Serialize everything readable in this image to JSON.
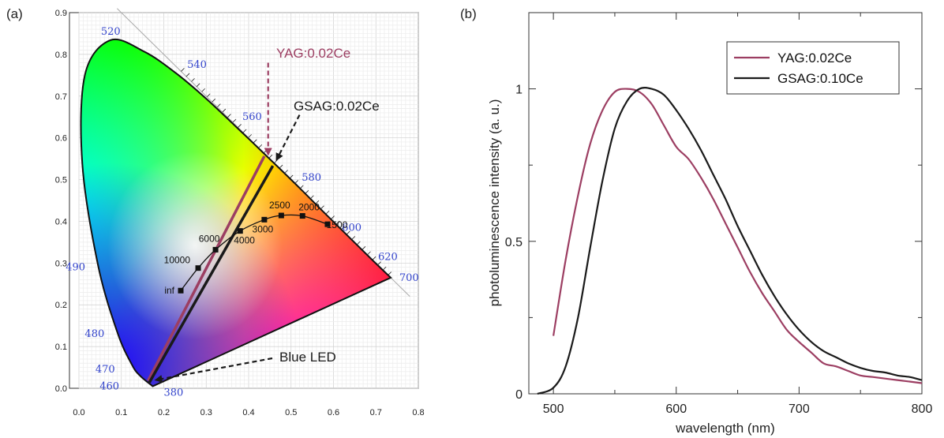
{
  "panels": {
    "a_label": "(a)",
    "b_label": "(b)"
  },
  "chart_data": [
    {
      "type": "scatter",
      "xlim": [
        0.0,
        0.8
      ],
      "ylim": [
        0.0,
        0.9
      ],
      "x_ticks": [
        "0.0",
        "0.1",
        "0.2",
        "0.3",
        "0.4",
        "0.5",
        "0.6",
        "0.7",
        "0.8"
      ],
      "y_ticks": [
        "0.0",
        "0.1",
        "0.2",
        "0.3",
        "0.4",
        "0.5",
        "0.6",
        "0.7",
        "0.8",
        "0.9"
      ],
      "grid": true,
      "spectral_locus": [
        {
          "wl": "380",
          "x": 0.174,
          "y": 0.005
        },
        {
          "wl": "460",
          "x": 0.144,
          "y": 0.03
        },
        {
          "wl": "470",
          "x": 0.124,
          "y": 0.058
        },
        {
          "wl": "480",
          "x": 0.091,
          "y": 0.133
        },
        {
          "wl": "490",
          "x": 0.045,
          "y": 0.295
        },
        {
          "wl": "",
          "x": 0.008,
          "y": 0.538
        },
        {
          "wl": "",
          "x": 0.014,
          "y": 0.75
        },
        {
          "wl": "520",
          "x": 0.074,
          "y": 0.834
        },
        {
          "wl": "",
          "x": 0.155,
          "y": 0.806
        },
        {
          "wl": "540",
          "x": 0.23,
          "y": 0.754
        },
        {
          "wl": "",
          "x": 0.302,
          "y": 0.692
        },
        {
          "wl": "560",
          "x": 0.373,
          "y": 0.624
        },
        {
          "wl": "",
          "x": 0.444,
          "y": 0.555
        },
        {
          "wl": "580",
          "x": 0.513,
          "y": 0.487
        },
        {
          "wl": "",
          "x": 0.575,
          "y": 0.424
        },
        {
          "wl": "600",
          "x": 0.627,
          "y": 0.372
        },
        {
          "wl": "620",
          "x": 0.691,
          "y": 0.308
        },
        {
          "wl": "700",
          "x": 0.735,
          "y": 0.265
        }
      ],
      "planckian_locus": [
        {
          "label": "inf",
          "x": 0.24,
          "y": 0.234
        },
        {
          "label": "10000",
          "x": 0.281,
          "y": 0.288
        },
        {
          "label": "6000",
          "x": 0.322,
          "y": 0.332
        },
        {
          "label": "4000",
          "x": 0.38,
          "y": 0.377
        },
        {
          "label": "3000",
          "x": 0.437,
          "y": 0.404
        },
        {
          "label": "2500",
          "x": 0.477,
          "y": 0.414
        },
        {
          "label": "2000",
          "x": 0.527,
          "y": 0.413
        },
        {
          "label": "1500",
          "x": 0.586,
          "y": 0.393
        }
      ],
      "series": [
        {
          "name": "YAG:0.02Ce",
          "color": "#9c3e62",
          "points": [
            [
              0.163,
              0.018
            ],
            [
              0.437,
              0.556
            ]
          ]
        },
        {
          "name": "GSAG:0.02Ce",
          "color": "#1a1a1a",
          "points": [
            [
              0.166,
              0.014
            ],
            [
              0.457,
              0.533
            ]
          ]
        }
      ],
      "annotations": [
        {
          "text": "YAG:0.02Ce",
          "color": "#9c3e62",
          "target": [
            0.446,
            0.553
          ]
        },
        {
          "text": "GSAG:0.02Ce",
          "color": "#1a1a1a",
          "target": [
            0.466,
            0.54
          ]
        },
        {
          "text": "Blue LED",
          "color": "#1a1a1a",
          "target": [
            0.174,
            0.018
          ]
        }
      ]
    },
    {
      "type": "line",
      "xlabel": "wavelength (nm)",
      "ylabel": "photoluminescence intensity (a. u.)",
      "xlim": [
        480,
        800
      ],
      "ylim": [
        0,
        1.25
      ],
      "x_ticks": [
        "500",
        "600",
        "700",
        "800"
      ],
      "y_ticks": [
        "0",
        "0.5",
        "1"
      ],
      "legend": "top-right",
      "series": [
        {
          "name": "YAG:0.02Ce",
          "color": "#9c3e62",
          "x": [
            500,
            510,
            520,
            530,
            540,
            550,
            560,
            570,
            580,
            590,
            600,
            610,
            620,
            630,
            640,
            650,
            660,
            670,
            680,
            690,
            700,
            710,
            720,
            730,
            740,
            750,
            760,
            770,
            780,
            790,
            800
          ],
          "y": [
            0.19,
            0.44,
            0.65,
            0.82,
            0.93,
            0.99,
            1.0,
            0.99,
            0.95,
            0.88,
            0.81,
            0.77,
            0.71,
            0.64,
            0.56,
            0.48,
            0.4,
            0.33,
            0.27,
            0.21,
            0.17,
            0.135,
            0.1,
            0.09,
            0.075,
            0.06,
            0.055,
            0.05,
            0.045,
            0.04,
            0.035
          ]
        },
        {
          "name": "GSAG:0.10Ce",
          "color": "#1a1a1a",
          "x": [
            487,
            500,
            510,
            520,
            530,
            540,
            550,
            560,
            570,
            580,
            590,
            600,
            610,
            620,
            630,
            640,
            650,
            660,
            670,
            680,
            690,
            700,
            710,
            720,
            730,
            740,
            750,
            760,
            770,
            780,
            790,
            800
          ],
          "y": [
            0.0,
            0.02,
            0.09,
            0.25,
            0.48,
            0.7,
            0.87,
            0.96,
            1.0,
            1.0,
            0.98,
            0.93,
            0.87,
            0.8,
            0.72,
            0.64,
            0.55,
            0.47,
            0.39,
            0.32,
            0.26,
            0.21,
            0.17,
            0.14,
            0.12,
            0.1,
            0.085,
            0.075,
            0.07,
            0.06,
            0.055,
            0.045
          ]
        }
      ]
    }
  ]
}
